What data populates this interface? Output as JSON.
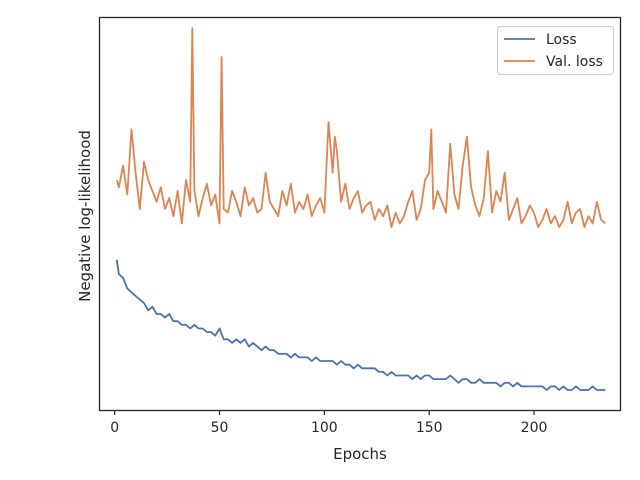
{
  "chart_data": {
    "type": "line",
    "title": "",
    "xlabel": "Epochs",
    "ylabel": "Negative log-likelihood",
    "xlim": [
      -7,
      241
    ],
    "ylim": [
      0,
      100
    ],
    "y_scale_note_hidden": true,
    "x_ticks": [
      0,
      50,
      100,
      150,
      200
    ],
    "y_ticks": [],
    "grid": false,
    "legend_position": "top-right",
    "series": [
      {
        "name": "Loss",
        "color": "#4c72b0",
        "x": [
          1,
          2,
          4,
          6,
          8,
          10,
          12,
          14,
          16,
          18,
          20,
          22,
          24,
          26,
          28,
          30,
          32,
          34,
          36,
          38,
          40,
          42,
          44,
          46,
          48,
          50,
          52,
          54,
          56,
          58,
          60,
          62,
          64,
          66,
          68,
          70,
          72,
          74,
          76,
          78,
          80,
          82,
          84,
          86,
          88,
          90,
          92,
          94,
          96,
          98,
          100,
          102,
          104,
          106,
          108,
          110,
          112,
          114,
          116,
          118,
          120,
          122,
          124,
          126,
          128,
          130,
          132,
          134,
          136,
          138,
          140,
          142,
          144,
          146,
          148,
          150,
          152,
          154,
          156,
          158,
          160,
          162,
          164,
          166,
          168,
          170,
          172,
          174,
          176,
          178,
          180,
          182,
          184,
          186,
          188,
          190,
          192,
          194,
          196,
          198,
          200,
          202,
          204,
          206,
          208,
          210,
          212,
          214,
          216,
          218,
          220,
          222,
          224,
          226,
          228,
          230,
          232,
          234
        ],
        "values": [
          36,
          32,
          31,
          28,
          27,
          26,
          25,
          24,
          22,
          23,
          21,
          21,
          20,
          21,
          19,
          19,
          18,
          18,
          17,
          18,
          17,
          17,
          16,
          16,
          15,
          17,
          14,
          14,
          13,
          14,
          13,
          14,
          12,
          13,
          12,
          11,
          12,
          11,
          11,
          10,
          10,
          10,
          9,
          10,
          9,
          9,
          9,
          8,
          9,
          8,
          8,
          8,
          8,
          7,
          8,
          7,
          7,
          6,
          7,
          6,
          6,
          6,
          6,
          5,
          5,
          4,
          5,
          4,
          4,
          4,
          4,
          3,
          4,
          3,
          4,
          4,
          3,
          3,
          3,
          3,
          4,
          3,
          2,
          3,
          3,
          2,
          2,
          3,
          2,
          2,
          2,
          2,
          1,
          2,
          2,
          1,
          2,
          1,
          1,
          1,
          1,
          1,
          1,
          0,
          1,
          1,
          0,
          1,
          0,
          0,
          1,
          0,
          0,
          0,
          1,
          0,
          0,
          0
        ]
      },
      {
        "name": "Val. loss",
        "color": "#dd8452",
        "x": [
          1,
          2,
          4,
          6,
          8,
          10,
          12,
          14,
          16,
          18,
          20,
          22,
          24,
          26,
          28,
          30,
          32,
          34,
          36,
          37,
          38,
          40,
          42,
          44,
          46,
          48,
          50,
          51,
          52,
          54,
          56,
          58,
          60,
          62,
          64,
          66,
          68,
          70,
          72,
          74,
          76,
          78,
          80,
          82,
          84,
          86,
          88,
          90,
          92,
          94,
          96,
          98,
          100,
          102,
          104,
          105,
          106,
          108,
          110,
          112,
          114,
          116,
          118,
          120,
          122,
          124,
          126,
          128,
          130,
          132,
          134,
          136,
          138,
          140,
          142,
          144,
          146,
          148,
          150,
          151,
          152,
          154,
          156,
          158,
          160,
          162,
          164,
          166,
          168,
          170,
          172,
          174,
          176,
          178,
          180,
          182,
          184,
          186,
          188,
          190,
          192,
          194,
          196,
          198,
          200,
          202,
          204,
          206,
          208,
          210,
          212,
          214,
          216,
          218,
          220,
          222,
          224,
          226,
          228,
          230,
          232,
          234
        ],
        "values": [
          58,
          56,
          62,
          54,
          72,
          60,
          50,
          63,
          58,
          55,
          52,
          56,
          50,
          53,
          48,
          55,
          46,
          58,
          52,
          100,
          55,
          48,
          53,
          57,
          51,
          54,
          46,
          92,
          50,
          49,
          55,
          52,
          48,
          56,
          51,
          53,
          49,
          50,
          60,
          52,
          50,
          48,
          55,
          51,
          57,
          49,
          52,
          50,
          54,
          48,
          51,
          53,
          49,
          74,
          60,
          70,
          66,
          52,
          57,
          50,
          53,
          55,
          49,
          51,
          52,
          47,
          50,
          48,
          51,
          45,
          49,
          46,
          48,
          52,
          55,
          47,
          50,
          58,
          60,
          72,
          50,
          55,
          52,
          49,
          68,
          54,
          50,
          62,
          70,
          56,
          51,
          48,
          53,
          66,
          49,
          55,
          52,
          60,
          47,
          50,
          53,
          46,
          48,
          51,
          49,
          45,
          47,
          50,
          46,
          48,
          45,
          47,
          52,
          46,
          49,
          50,
          45,
          48,
          46,
          52,
          47,
          46
        ]
      }
    ]
  }
}
